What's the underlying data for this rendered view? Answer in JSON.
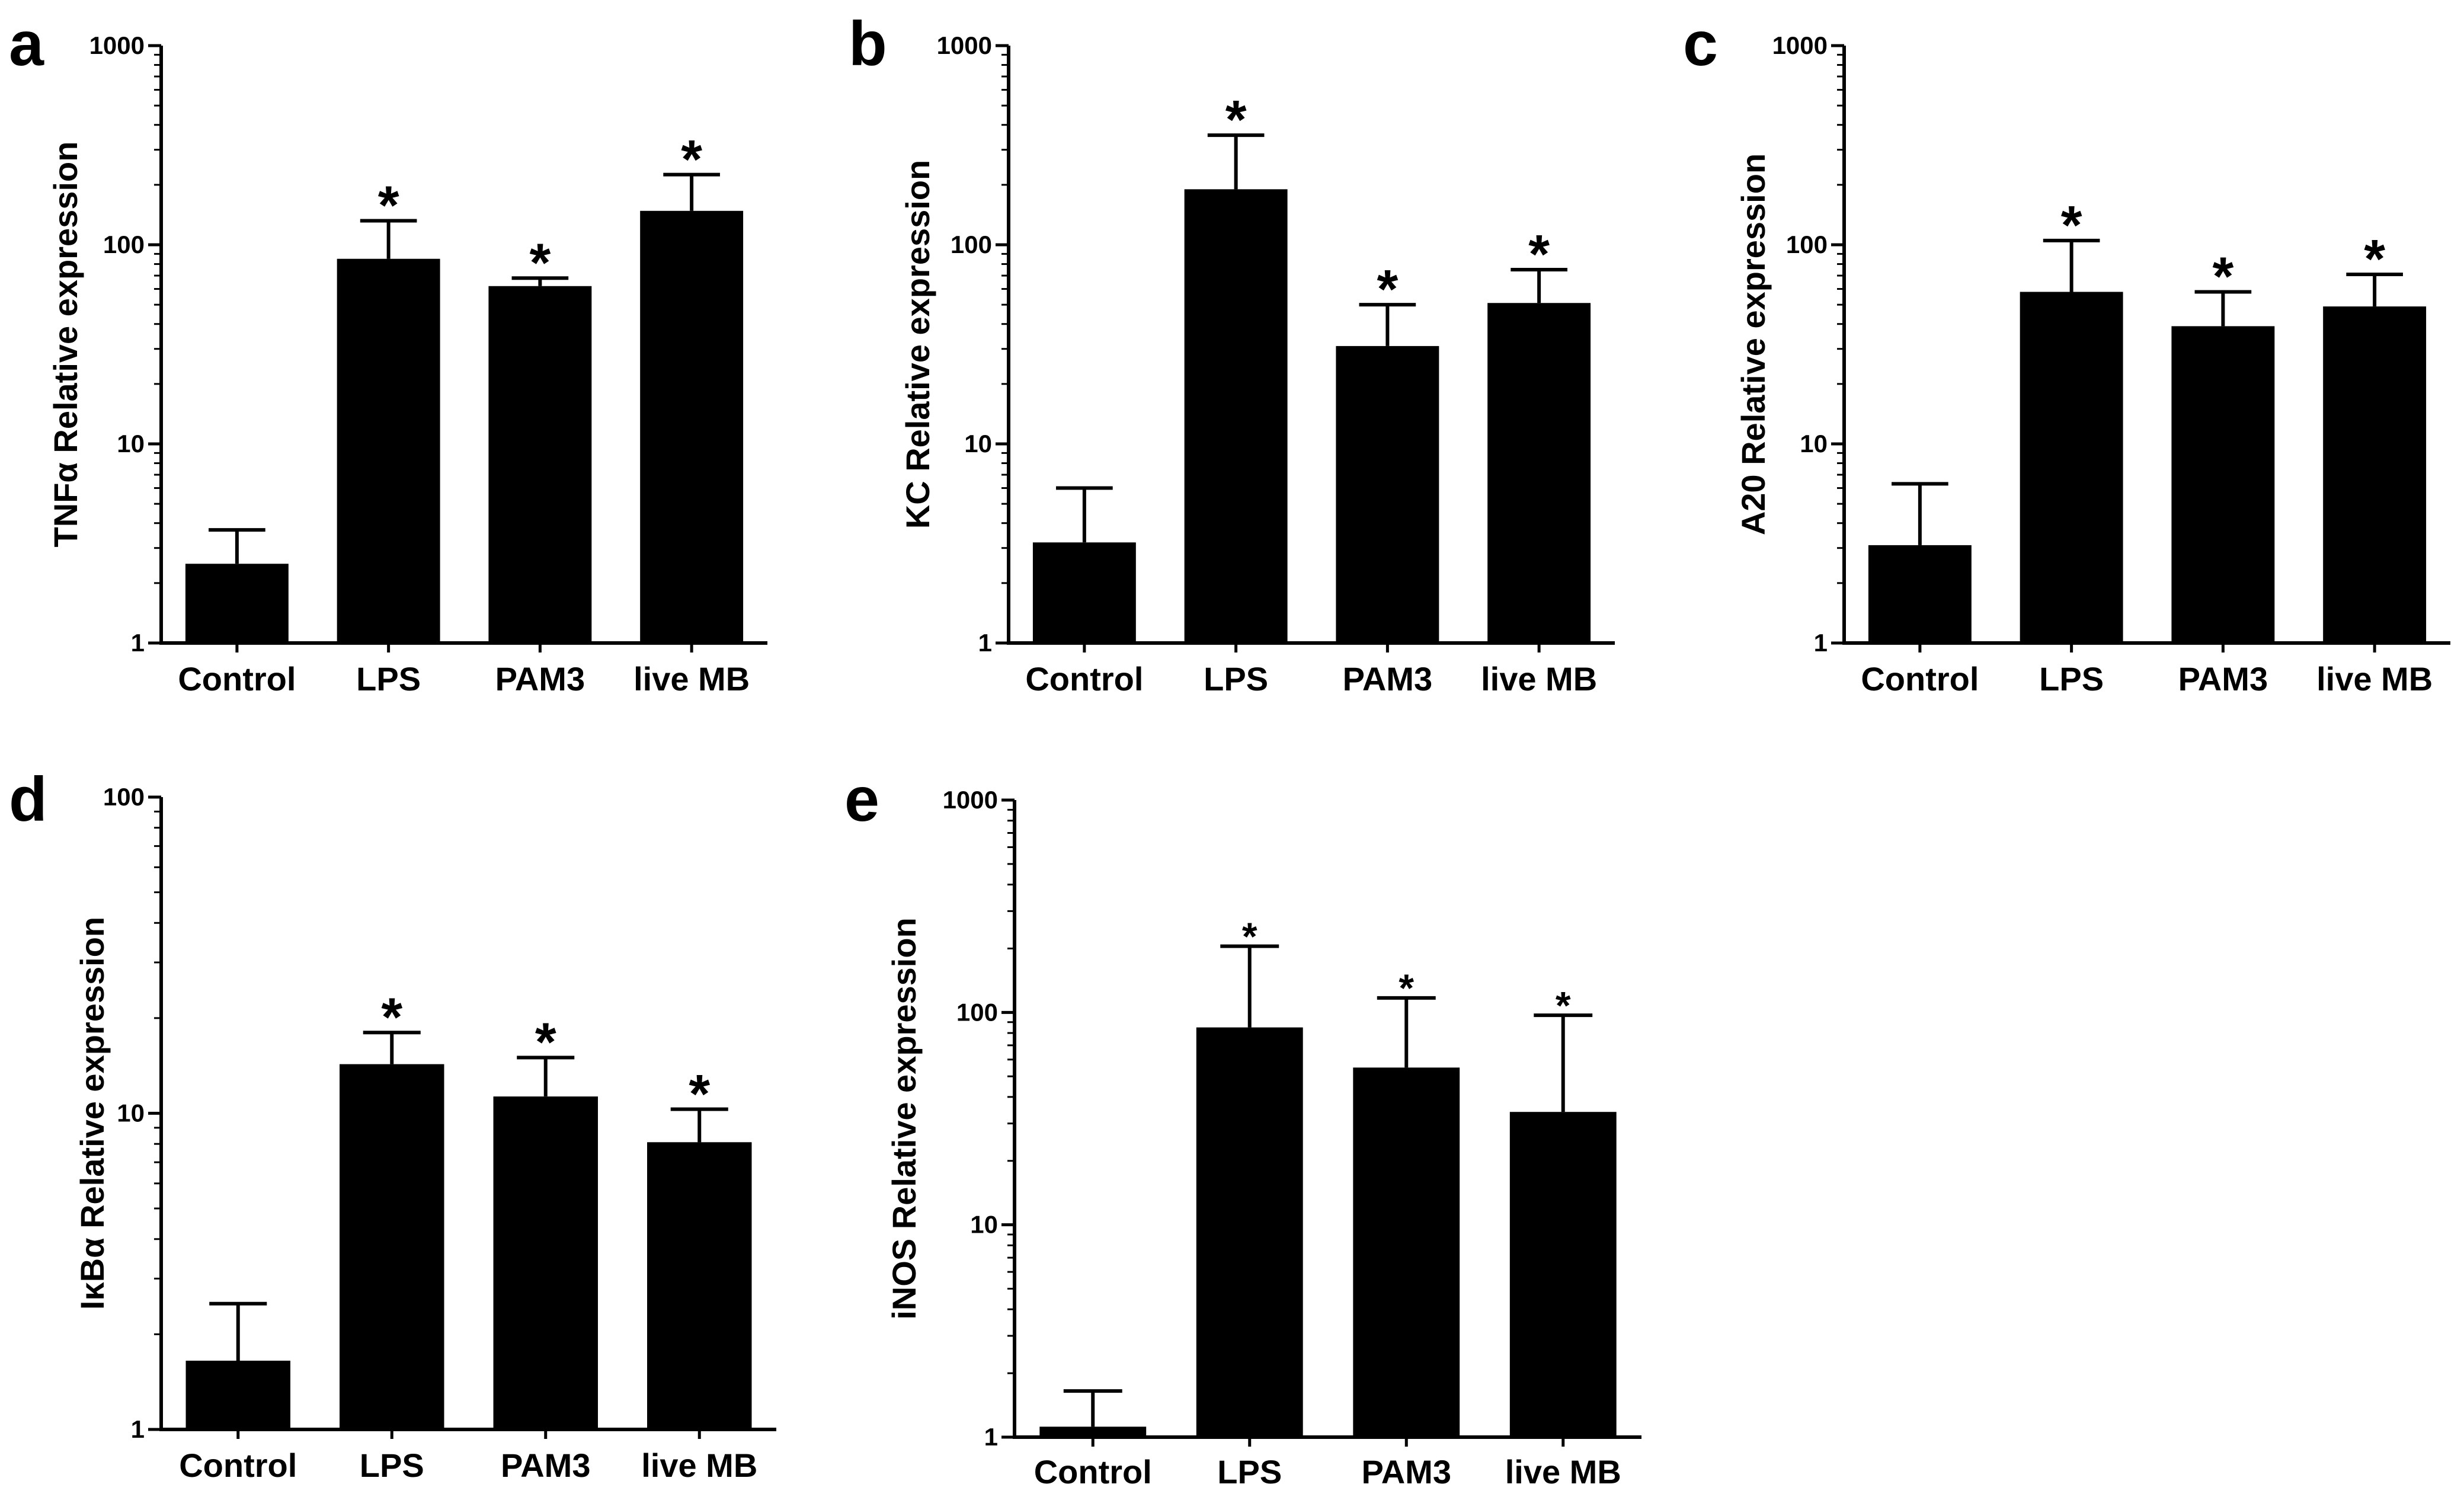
{
  "figure": {
    "chart_data": [
      {
        "panel": "a",
        "type": "bar",
        "scale": "log",
        "ylabel": "TNFα Relative expression",
        "ylim": [
          1,
          1000
        ],
        "yticks": [
          "1",
          "10",
          "100",
          "1000"
        ],
        "categories": [
          "Control",
          "LPS",
          "PAM3",
          "live MB"
        ],
        "values": [
          2.5,
          85,
          62,
          148
        ],
        "error_upper": [
          3.7,
          132,
          68,
          225
        ],
        "significance": [
          "",
          "*",
          "*",
          "*"
        ]
      },
      {
        "panel": "b",
        "type": "bar",
        "scale": "log",
        "ylabel": "KC Relative expression",
        "ylim": [
          1,
          1000
        ],
        "yticks": [
          "1",
          "10",
          "100",
          "1000"
        ],
        "categories": [
          "Control",
          "LPS",
          "PAM3",
          "live MB"
        ],
        "values": [
          3.2,
          190,
          31,
          51
        ],
        "error_upper": [
          6.0,
          355,
          50,
          75
        ],
        "significance": [
          "",
          "*",
          "*",
          "*"
        ]
      },
      {
        "panel": "c",
        "type": "bar",
        "scale": "log",
        "ylabel": "A20 Relative expression",
        "ylim": [
          1,
          1000
        ],
        "yticks": [
          "1",
          "10",
          "100",
          "1000"
        ],
        "categories": [
          "Control",
          "LPS",
          "PAM3",
          "live MB"
        ],
        "values": [
          3.1,
          58,
          39,
          49
        ],
        "error_upper": [
          6.3,
          105,
          58,
          71
        ],
        "significance": [
          "",
          "*",
          "*",
          "*"
        ]
      },
      {
        "panel": "d",
        "type": "bar",
        "scale": "log",
        "ylabel": "IκBα Relative expression",
        "ylim": [
          1,
          100
        ],
        "yticks": [
          "1",
          "10",
          "100"
        ],
        "categories": [
          "Control",
          "LPS",
          "PAM3",
          "live MB"
        ],
        "values": [
          1.65,
          14.3,
          11.3,
          8.1
        ],
        "error_upper": [
          2.5,
          18.0,
          15.0,
          10.3
        ],
        "significance": [
          "",
          "*",
          "*",
          "*"
        ]
      },
      {
        "panel": "e",
        "type": "bar",
        "scale": "log",
        "ylabel": "iNOS Relative expression",
        "ylim": [
          1,
          1000
        ],
        "yticks": [
          "1",
          "10",
          "100",
          "1000"
        ],
        "categories": [
          "Control",
          "LPS",
          "PAM3",
          "live MB"
        ],
        "values": [
          1.12,
          85,
          55,
          34
        ],
        "error_upper": [
          1.65,
          205,
          117,
          97
        ],
        "significance": [
          "",
          "*",
          "*",
          "*"
        ]
      }
    ]
  }
}
